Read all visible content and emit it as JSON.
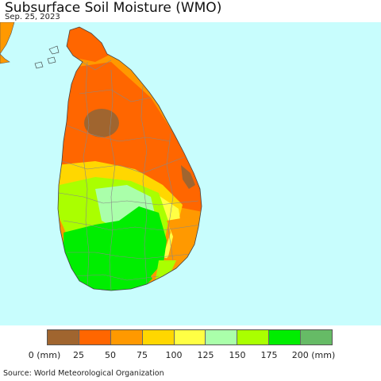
{
  "title": "Subsurface Soil Moisture (WMO)",
  "date": "Sep. 25, 2023",
  "legend": {
    "colors": [
      "#a0652f",
      "#ff6600",
      "#ff9900",
      "#ffd700",
      "#ffff44",
      "#aaffaa",
      "#aaff00",
      "#00ee00",
      "#66bb66"
    ],
    "ticks": [
      "0 (mm)",
      "25",
      "50",
      "75",
      "100",
      "125",
      "150",
      "175",
      "200 (mm)"
    ]
  },
  "source": "Source: World Meteorological Organization",
  "colors": {
    "sea": "#c8fdfd",
    "boundary": "#888888"
  }
}
